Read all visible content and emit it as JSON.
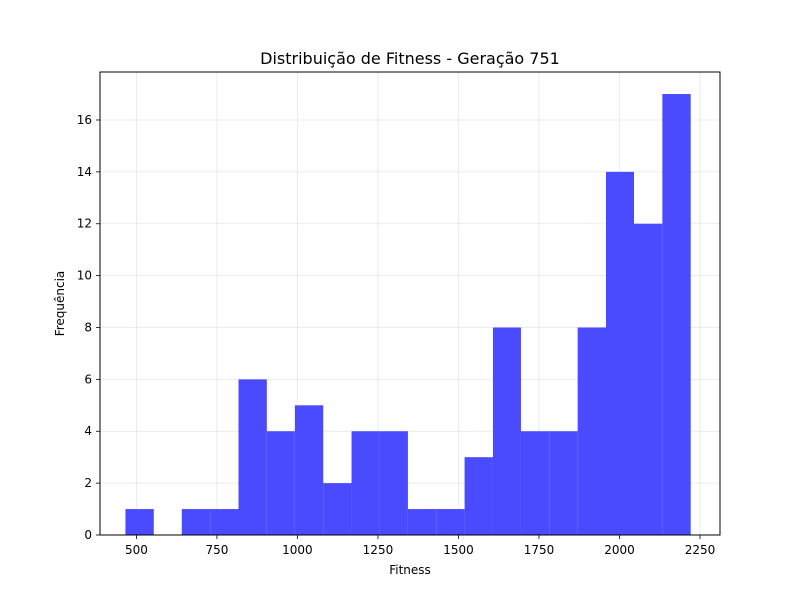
{
  "chart_data": {
    "type": "bar",
    "title": "Distribuição de Fitness - Geração 751",
    "xlabel": "Fitness",
    "ylabel": "Frequência",
    "bar_color": "#4a4aff",
    "grid": true,
    "xlim": [
      387,
      2312
    ],
    "ylim": [
      0,
      17.85
    ],
    "x_ticks": [
      500,
      750,
      1000,
      1250,
      1500,
      1750,
      2000,
      2250
    ],
    "y_ticks": [
      0,
      2,
      4,
      6,
      8,
      10,
      12,
      14,
      16
    ],
    "bin_edges": [
      466,
      554,
      641,
      729,
      817,
      905,
      992,
      1080,
      1168,
      1256,
      1343,
      1431,
      1519,
      1607,
      1694,
      1782,
      1870,
      1958,
      2045,
      2133,
      2221
    ],
    "values": [
      1,
      0,
      1,
      1,
      6,
      4,
      5,
      2,
      4,
      4,
      1,
      1,
      3,
      8,
      4,
      4,
      8,
      14,
      12,
      17
    ]
  }
}
